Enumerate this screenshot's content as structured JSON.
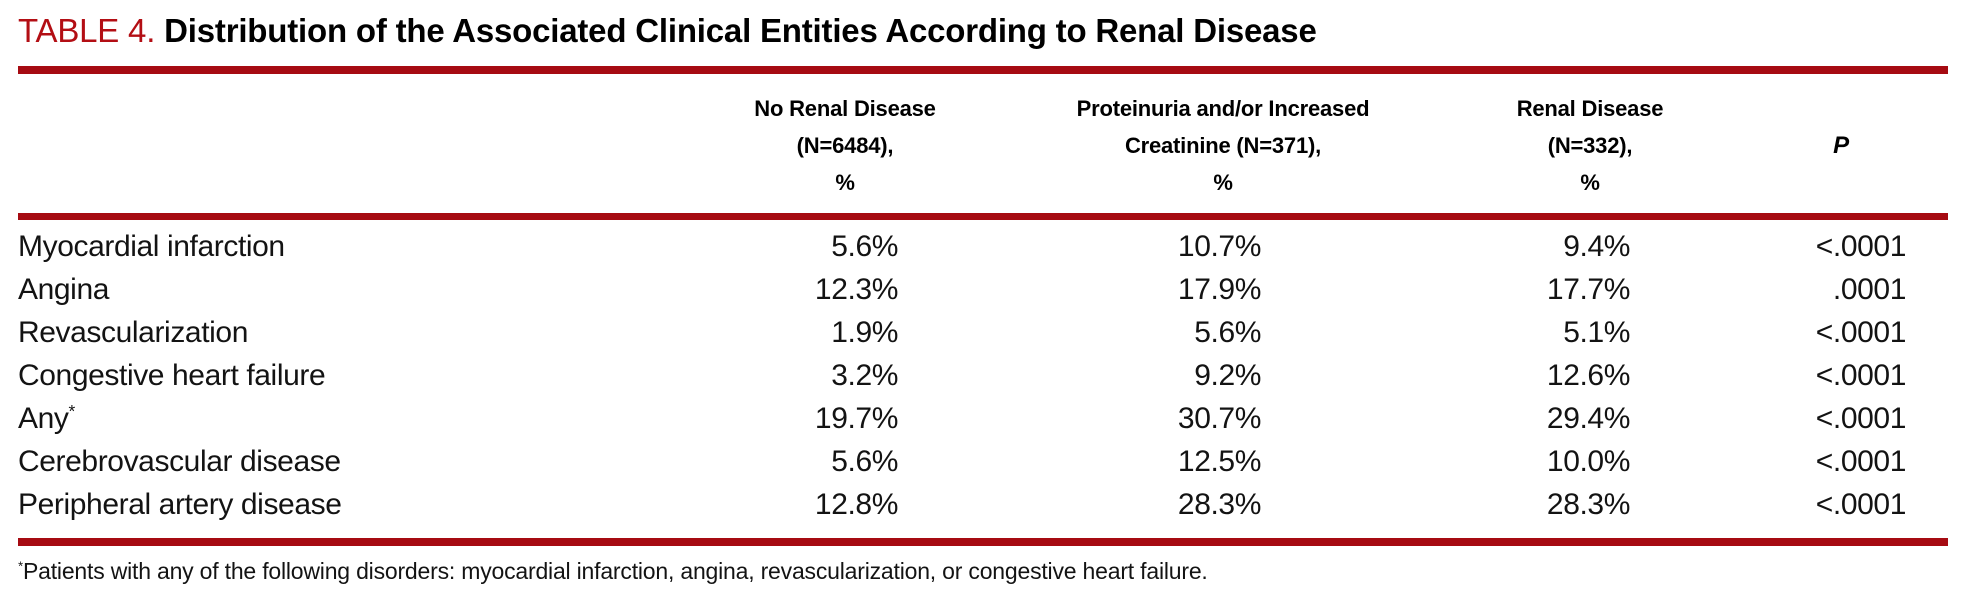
{
  "colors": {
    "accent_red": "#A60B12",
    "title_label_red": "#B30E14",
    "text": "#111111"
  },
  "table": {
    "label": "TABLE 4.",
    "title": "Distribution of the Associated Clinical Entities According to Renal Disease",
    "header": {
      "entity_col": "",
      "col2_line1": "No Renal Disease",
      "col2_line2": "(N=6484),",
      "col2_line3": "%",
      "col3_line1": "Proteinuria and/or Increased",
      "col3_line2": "Creatinine (N=371),",
      "col3_line3": "%",
      "col4_line1": "Renal Disease",
      "col4_line2": "(N=332),",
      "col4_line3": "%",
      "col5": "P"
    },
    "rows": [
      {
        "entity": "Myocardial infarction",
        "marker": "",
        "no_renal": "5.6%",
        "proteinuria": "10.7%",
        "renal": "9.4%",
        "p": "<.0001"
      },
      {
        "entity": "Angina",
        "marker": "",
        "no_renal": "12.3%",
        "proteinuria": "17.9%",
        "renal": "17.7%",
        "p": ".0001"
      },
      {
        "entity": "Revascularization",
        "marker": "",
        "no_renal": "1.9%",
        "proteinuria": "5.6%",
        "renal": "5.1%",
        "p": "<.0001"
      },
      {
        "entity": "Congestive heart failure",
        "marker": "",
        "no_renal": "3.2%",
        "proteinuria": "9.2%",
        "renal": "12.6%",
        "p": "<.0001"
      },
      {
        "entity": "Any",
        "marker": "*",
        "no_renal": "19.7%",
        "proteinuria": "30.7%",
        "renal": "29.4%",
        "p": "<.0001"
      },
      {
        "entity": "Cerebrovascular disease",
        "marker": "",
        "no_renal": "5.6%",
        "proteinuria": "12.5%",
        "renal": "10.0%",
        "p": "<.0001"
      },
      {
        "entity": "Peripheral artery disease",
        "marker": "",
        "no_renal": "12.8%",
        "proteinuria": "28.3%",
        "renal": "28.3%",
        "p": "<.0001"
      }
    ],
    "footnote": {
      "marker": "*",
      "text": "Patients with any of the following disorders: myocardial infarction, angina, revascularization, or congestive heart failure."
    }
  },
  "chart_data": {
    "type": "table",
    "title": "TABLE 4. Distribution of the Associated Clinical Entities According to Renal Disease",
    "columns": [
      "",
      "No Renal Disease (N=6484), %",
      "Proteinuria and/or Increased Creatinine (N=371), %",
      "Renal Disease (N=332), %",
      "P"
    ],
    "rows": [
      [
        "Myocardial infarction",
        "5.6%",
        "10.7%",
        "9.4%",
        "<.0001"
      ],
      [
        "Angina",
        "12.3%",
        "17.9%",
        "17.7%",
        ".0001"
      ],
      [
        "Revascularization",
        "1.9%",
        "5.6%",
        "5.1%",
        "<.0001"
      ],
      [
        "Congestive heart failure",
        "3.2%",
        "9.2%",
        "12.6%",
        "<.0001"
      ],
      [
        "Any*",
        "19.7%",
        "30.7%",
        "29.4%",
        "<.0001"
      ],
      [
        "Cerebrovascular disease",
        "5.6%",
        "12.5%",
        "10.0%",
        "<.0001"
      ],
      [
        "Peripheral artery disease",
        "12.8%",
        "28.3%",
        "28.3%",
        "<.0001"
      ]
    ]
  }
}
